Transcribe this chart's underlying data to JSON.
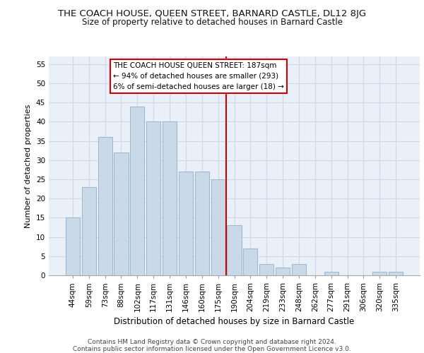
{
  "title": "THE COACH HOUSE, QUEEN STREET, BARNARD CASTLE, DL12 8JG",
  "subtitle": "Size of property relative to detached houses in Barnard Castle",
  "xlabel": "Distribution of detached houses by size in Barnard Castle",
  "ylabel": "Number of detached properties",
  "categories": [
    "44sqm",
    "59sqm",
    "73sqm",
    "88sqm",
    "102sqm",
    "117sqm",
    "131sqm",
    "146sqm",
    "160sqm",
    "175sqm",
    "190sqm",
    "204sqm",
    "219sqm",
    "233sqm",
    "248sqm",
    "262sqm",
    "277sqm",
    "291sqm",
    "306sqm",
    "320sqm",
    "335sqm"
  ],
  "values": [
    15,
    23,
    36,
    32,
    44,
    40,
    40,
    27,
    27,
    25,
    13,
    7,
    3,
    2,
    3,
    0,
    1,
    0,
    0,
    1,
    1
  ],
  "bar_color": "#c9d9e8",
  "bar_edge_color": "#a0b8d0",
  "grid_color": "#d0d8e8",
  "background_color": "#eaf0f8",
  "vline_color": "#cc0000",
  "annotation_text": "THE COACH HOUSE QUEEN STREET: 187sqm\n← 94% of detached houses are smaller (293)\n6% of semi-detached houses are larger (18) →",
  "annotation_box_color": "#ffffff",
  "annotation_box_edge": "#cc0000",
  "footer_line1": "Contains HM Land Registry data © Crown copyright and database right 2024.",
  "footer_line2": "Contains public sector information licensed under the Open Government Licence v3.0.",
  "ylim": [
    0,
    57
  ],
  "yticks": [
    0,
    5,
    10,
    15,
    20,
    25,
    30,
    35,
    40,
    45,
    50,
    55
  ],
  "title_fontsize": 9.5,
  "subtitle_fontsize": 8.5,
  "ylabel_fontsize": 8,
  "xlabel_fontsize": 8.5,
  "tick_fontsize": 7.5,
  "annot_fontsize": 7.5,
  "footer_fontsize": 6.5
}
